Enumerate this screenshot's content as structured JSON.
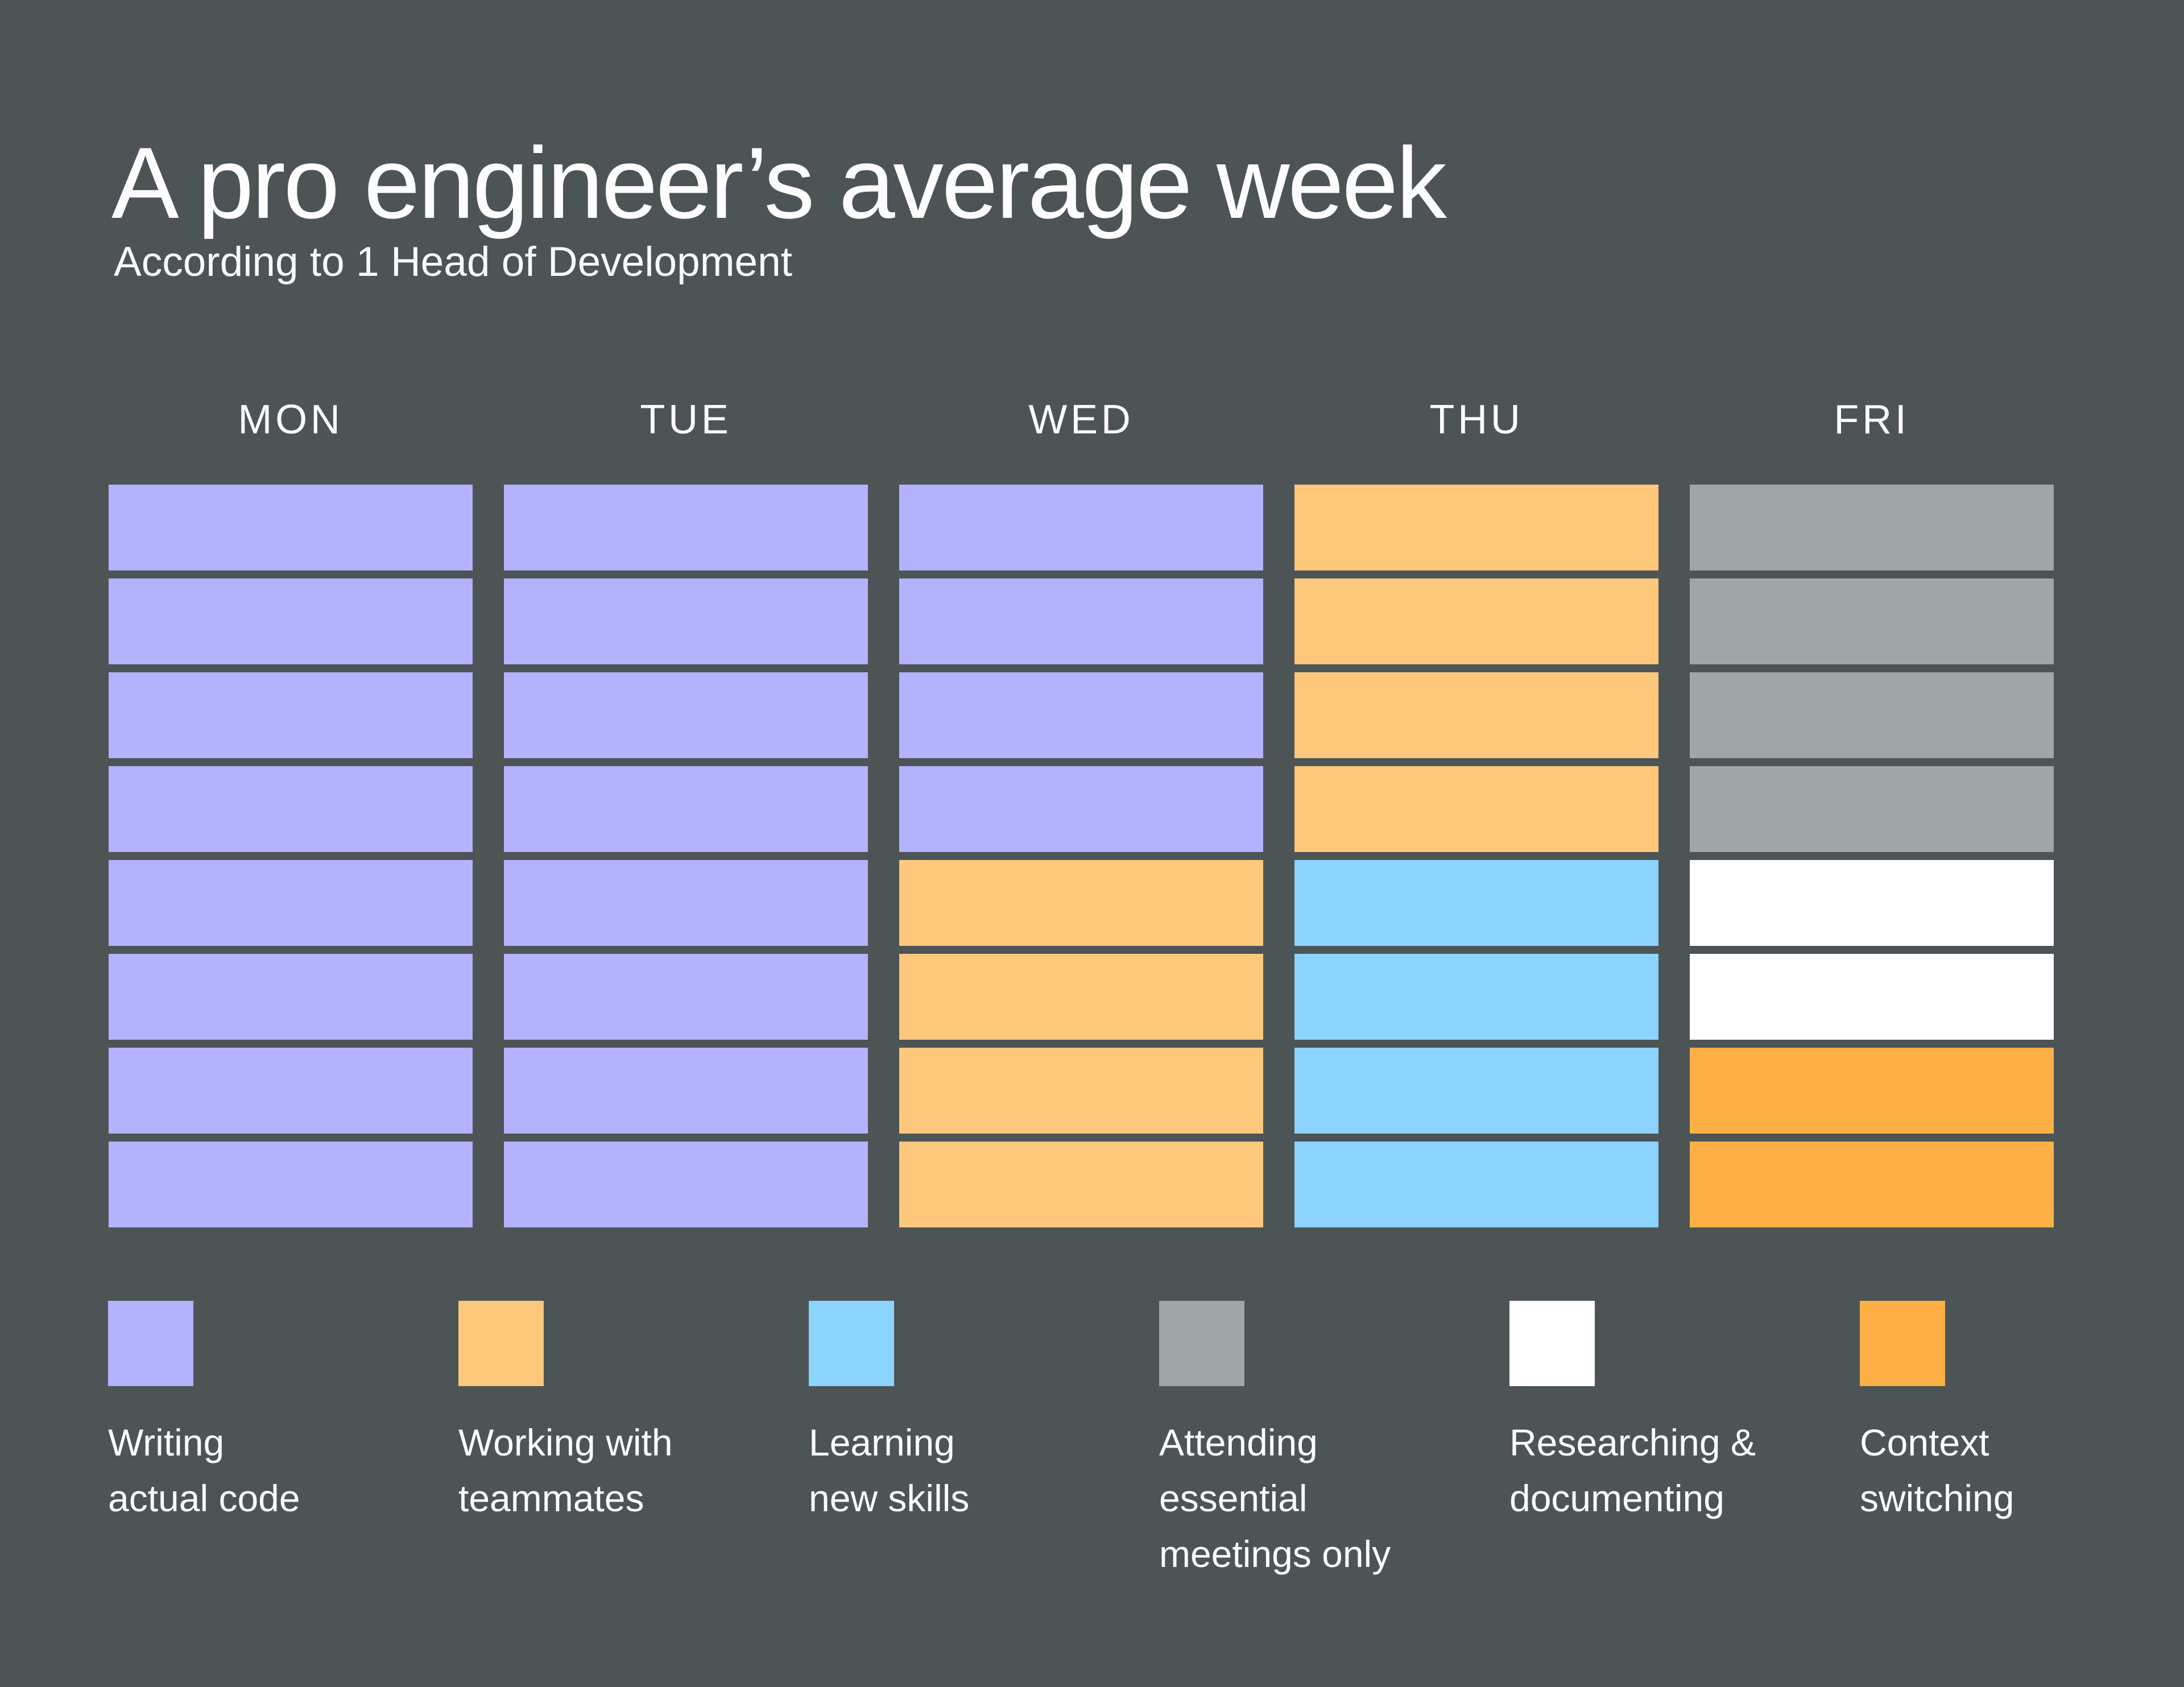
{
  "page": {
    "background_color": "#4d5456",
    "text_color": "#fdfdfd"
  },
  "chart_data": {
    "type": "heatmap",
    "title": "A pro engineer’s average week",
    "subtitle": "According to 1 Head of Development",
    "categories": [
      "MON",
      "TUE",
      "WED",
      "THU",
      "FRI"
    ],
    "blocks_per_day": 8,
    "legend_position": "bottom",
    "grid": "off",
    "activities": [
      {
        "key": "writing_code",
        "label": "Writing\nactual code",
        "color": "#b3b2fc"
      },
      {
        "key": "teammates",
        "label": "Working with\nteammates",
        "color": "#fdc87b"
      },
      {
        "key": "learning",
        "label": "Learning\nnew skills",
        "color": "#8cd3fd"
      },
      {
        "key": "meetings",
        "label": "Attending\nessential\nmeetings only",
        "color": "#a0a5a8"
      },
      {
        "key": "research",
        "label": "Researching &\ndocumenting",
        "color": "#ffffff"
      },
      {
        "key": "context_switching",
        "label": "Context\nswitching",
        "color": "#fcb045"
      }
    ],
    "columns": [
      {
        "day": "MON",
        "cells": [
          "writing_code",
          "writing_code",
          "writing_code",
          "writing_code",
          "writing_code",
          "writing_code",
          "writing_code",
          "writing_code"
        ]
      },
      {
        "day": "TUE",
        "cells": [
          "writing_code",
          "writing_code",
          "writing_code",
          "writing_code",
          "writing_code",
          "writing_code",
          "writing_code",
          "writing_code"
        ]
      },
      {
        "day": "WED",
        "cells": [
          "writing_code",
          "writing_code",
          "writing_code",
          "writing_code",
          "teammates",
          "teammates",
          "teammates",
          "teammates"
        ]
      },
      {
        "day": "THU",
        "cells": [
          "teammates",
          "teammates",
          "teammates",
          "teammates",
          "learning",
          "learning",
          "learning",
          "learning"
        ]
      },
      {
        "day": "FRI",
        "cells": [
          "meetings",
          "meetings",
          "meetings",
          "meetings",
          "research",
          "research",
          "context_switching",
          "context_switching"
        ]
      }
    ],
    "series": [
      {
        "name": "Writing actual code",
        "values_by_day": [
          8,
          8,
          4,
          0,
          0
        ]
      },
      {
        "name": "Working with teammates",
        "values_by_day": [
          0,
          0,
          4,
          4,
          0
        ]
      },
      {
        "name": "Learning new skills",
        "values_by_day": [
          0,
          0,
          0,
          4,
          0
        ]
      },
      {
        "name": "Attending essential meetings only",
        "values_by_day": [
          0,
          0,
          0,
          0,
          4
        ]
      },
      {
        "name": "Researching & documenting",
        "values_by_day": [
          0,
          0,
          0,
          0,
          2
        ]
      },
      {
        "name": "Context switching",
        "values_by_day": [
          0,
          0,
          0,
          0,
          2
        ]
      }
    ]
  }
}
